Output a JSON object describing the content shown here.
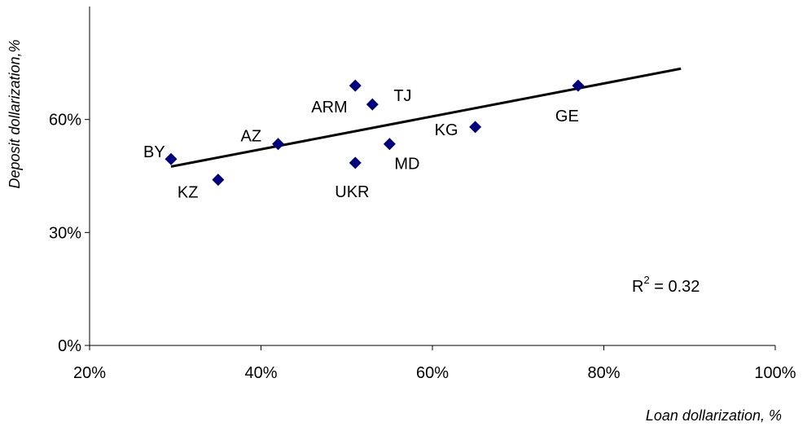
{
  "chart_data": {
    "type": "scatter",
    "title": "",
    "xlabel": "Loan dollarization, %",
    "ylabel": "Deposit dollarization,%",
    "xlim": [
      20,
      100
    ],
    "ylim": [
      0,
      90
    ],
    "x_ticks": [
      {
        "value": 20,
        "label": "20%"
      },
      {
        "value": 40,
        "label": "40%"
      },
      {
        "value": 60,
        "label": "60%"
      },
      {
        "value": 80,
        "label": "80%"
      },
      {
        "value": 100,
        "label": "100%"
      }
    ],
    "y_ticks": [
      {
        "value": 0,
        "label": "0%"
      },
      {
        "value": 30,
        "label": "30%"
      },
      {
        "value": 60,
        "label": "60%"
      }
    ],
    "grid": false,
    "points": [
      {
        "label": "BY",
        "x": 29.5,
        "y": 49.5
      },
      {
        "label": "KZ",
        "x": 35,
        "y": 44
      },
      {
        "label": "AZ",
        "x": 42,
        "y": 53.5
      },
      {
        "label": "ARM",
        "x": 51,
        "y": 69
      },
      {
        "label": "UKR",
        "x": 51,
        "y": 48.5
      },
      {
        "label": "TJ",
        "x": 53,
        "y": 64
      },
      {
        "label": "MD",
        "x": 55,
        "y": 53.5
      },
      {
        "label": "KG",
        "x": 65,
        "y": 58
      },
      {
        "label": "GE",
        "x": 77,
        "y": 69
      }
    ],
    "trendline": {
      "x": [
        29.5,
        89
      ],
      "y": [
        47.5,
        73.5
      ]
    },
    "annotation": {
      "r_label": "R",
      "r_exponent": "2",
      "r_value": " = 0.32"
    },
    "colors": {
      "marker": "#00007f",
      "trendline": "#000000"
    }
  }
}
